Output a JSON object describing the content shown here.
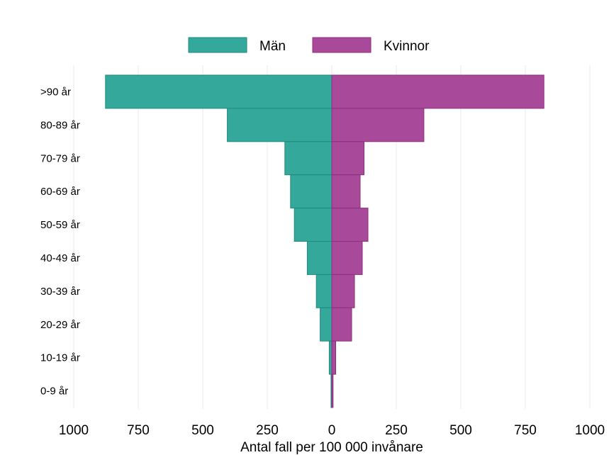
{
  "chart_data": {
    "type": "bar",
    "orientation": "horizontal",
    "layout": "population-pyramid",
    "title": "",
    "xlabel": "Antal fall per 100 000 invånare",
    "ylabel": "",
    "xlim": [
      -1000,
      1000
    ],
    "x_ticks": [
      -1000,
      -750,
      -500,
      -250,
      0,
      250,
      500,
      750,
      1000
    ],
    "x_tick_labels": [
      "1000",
      "750",
      "500",
      "250",
      "0",
      "250",
      "500",
      "750",
      "1000"
    ],
    "grid": "vertical",
    "legend_position": "top-center",
    "categories": [
      ">90 år",
      "80-89 år",
      "70-79 år",
      "60-69 år",
      "50-59 år",
      "40-49 år",
      "30-39 år",
      "20-29 år",
      "10-19 år",
      "0-9 år"
    ],
    "series": [
      {
        "name": "Män",
        "side": "left",
        "color": "#35a89c",
        "values": [
          877,
          405,
          182,
          160,
          145,
          95,
          60,
          45,
          10,
          3
        ]
      },
      {
        "name": "Kvinnor",
        "side": "right",
        "color": "#a84a99",
        "values": [
          822,
          357,
          125,
          110,
          140,
          118,
          88,
          77,
          15,
          5
        ]
      }
    ]
  }
}
